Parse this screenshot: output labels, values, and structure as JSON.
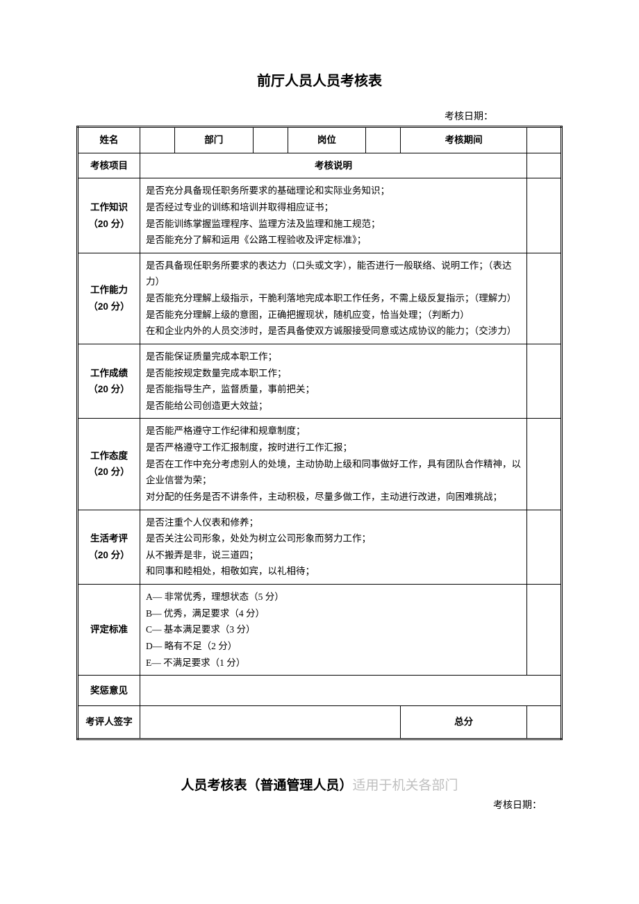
{
  "title": "前厅人员人员考核表",
  "date_label": "考核日期：",
  "header": {
    "name": "姓名",
    "department": "部门",
    "position": "岗位",
    "period": "考核期间"
  },
  "col_labels": {
    "project": "考核项目",
    "explanation": "考核说明"
  },
  "rows": [
    {
      "category": "工作知识\n（20 分）",
      "description": "是否充分具备现任职务所要求的基础理论和实际业务知识；\n是否经过专业的训练和培训并取得相应证书；\n是否能训练掌握监理程序、监理方法及监理和施工规范；\n是否能充分了解和运用《公路工程验收及评定标准》；"
    },
    {
      "category": "工作能力\n（20 分）",
      "description": "是否具备现任职务所要求的表达力（口头或文字），能否进行一般联络、说明工作；（表达力）\n是否能充分理解上级指示，干脆利落地完成本职工作任务，不需上级反复指示；（理解力）\n是否能充分理解上级的意图，正确把握现状，随机应变，恰当处理；（判断力）\n在和企业内外的人员交涉时，是否具备使双方诚服接受同意或达成协议的能力；（交涉力）"
    },
    {
      "category": "工作成绩\n（20 分）",
      "description": "是否能保证质量完成本职工作；\n是否能按规定数量完成本职工作；\n是否能指导生产，监督质量，事前把关；\n是否能给公司创造更大效益；"
    },
    {
      "category": "工作态度\n（20 分）",
      "description": "是否能严格遵守工作纪律和规章制度；\n是否严格遵守工作汇报制度，按时进行工作汇报；\n是否在工作中充分考虑别人的处境，主动协助上级和同事做好工作，具有团队合作精神，以企业信誉为荣；\n对分配的任务是否不讲条件，主动积极，尽量多做工作，主动进行改进，向困难挑战；"
    },
    {
      "category": "生活考评\n（20 分）",
      "description": "是否注重个人仪表和修养；\n是否关注公司形象，处处为树立公司形象而努力工作；\n从不搬弄是非，说三道四；\n和同事和睦相处，相敬如宾，以礼相待；"
    },
    {
      "category": "评定标准",
      "description": "A— 非常优秀，理想状态（5 分）\nB— 优秀，满足要求（4 分）\nC— 基本满足要求（3 分）\nD— 略有不足（2 分）\nE— 不满足要求（1 分）"
    }
  ],
  "footer": {
    "reward_opinion": "奖惩意见",
    "evaluator_sign": "考评人签字",
    "total_score": "总分"
  },
  "subtitle_main": "人员考核表（普通管理人员）",
  "subtitle_gray": "适用于机关各部门",
  "date_label_2": "考核日期："
}
